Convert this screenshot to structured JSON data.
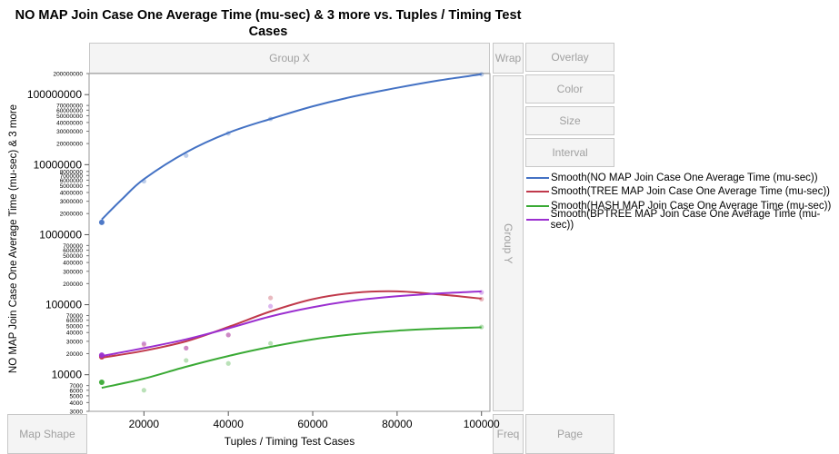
{
  "title_line1": "NO MAP Join Case One Average Time (mu-sec) & 3 more vs. Tuples / Timing Test",
  "title_line2": "Cases",
  "zones": {
    "group_x": "Group X",
    "wrap": "Wrap",
    "overlay": "Overlay",
    "color": "Color",
    "size": "Size",
    "interval": "Interval",
    "group_y": "Group Y",
    "map_shape": "Map Shape",
    "freq": "Freq",
    "page": "Page"
  },
  "chart_data": {
    "type": "scatter",
    "xlabel": "Tuples / Timing Test Cases",
    "ylabel": "NO MAP Join Case One Average Time (mu-sec) & 3 more",
    "y_scale": "log",
    "xlim": [
      7000,
      102000
    ],
    "ylim": [
      3000,
      200000000
    ],
    "x_ticks": [
      "20000",
      "40000",
      "60000",
      "80000",
      "100000"
    ],
    "y_ticks_major": [
      "100000000",
      "10000000",
      "1000000",
      "100000",
      "10000"
    ],
    "y_ticks_minor": [
      "200000000",
      "70000000",
      "60000000",
      "50000000",
      "40000000",
      "30000000",
      "20000000",
      "8000000",
      "7000000",
      "6000000",
      "5000000",
      "4000000",
      "3000000",
      "2000000",
      "700000",
      "600000",
      "500000",
      "400000",
      "300000",
      "200000",
      "70000",
      "60000",
      "50000",
      "40000",
      "30000",
      "20000",
      "7000",
      "6000",
      "5000",
      "4000",
      "3000"
    ],
    "series": [
      {
        "name": "Smooth(NO MAP Join Case One Average Time (mu-sec))",
        "color": "#4472c4",
        "points": [
          [
            10000,
            1500000
          ],
          [
            20000,
            5800000
          ],
          [
            30000,
            13500000
          ],
          [
            40000,
            28000000
          ],
          [
            50000,
            45000000
          ],
          [
            100000,
            195000000
          ]
        ],
        "smooth": [
          [
            10000,
            1650000
          ],
          [
            15000,
            3300000
          ],
          [
            20000,
            6200000
          ],
          [
            30000,
            15000000
          ],
          [
            40000,
            28500000
          ],
          [
            50000,
            45000000
          ],
          [
            60000,
            68000000
          ],
          [
            70000,
            95000000
          ],
          [
            80000,
            125000000
          ],
          [
            90000,
            160000000
          ],
          [
            100000,
            195000000
          ]
        ]
      },
      {
        "name": "Smooth(TREE MAP Join Case One Average Time (mu-sec))",
        "color": "#c0394b",
        "points": [
          [
            10000,
            18000
          ],
          [
            20000,
            27000
          ],
          [
            30000,
            24000
          ],
          [
            40000,
            37000
          ],
          [
            50000,
            125000
          ],
          [
            100000,
            120000
          ]
        ],
        "smooth": [
          [
            10000,
            17500
          ],
          [
            20000,
            22000
          ],
          [
            30000,
            30000
          ],
          [
            40000,
            48000
          ],
          [
            50000,
            80000
          ],
          [
            60000,
            120000
          ],
          [
            70000,
            148000
          ],
          [
            80000,
            155000
          ],
          [
            90000,
            140000
          ],
          [
            100000,
            122000
          ]
        ]
      },
      {
        "name": "Smooth(HASH MAP Join Case One Average Time (mu-sec))",
        "color": "#3aaa35",
        "points": [
          [
            10000,
            7800
          ],
          [
            20000,
            6000
          ],
          [
            30000,
            16000
          ],
          [
            40000,
            14500
          ],
          [
            50000,
            28000
          ],
          [
            100000,
            48000
          ]
        ],
        "smooth": [
          [
            10000,
            6500
          ],
          [
            20000,
            8800
          ],
          [
            30000,
            13000
          ],
          [
            40000,
            18500
          ],
          [
            50000,
            25000
          ],
          [
            60000,
            32000
          ],
          [
            70000,
            38000
          ],
          [
            80000,
            42500
          ],
          [
            90000,
            45500
          ],
          [
            100000,
            47500
          ]
        ]
      },
      {
        "name": "Smooth(BPTREE MAP Join Case One Average Time (mu-sec))",
        "color": "#9b2fd0",
        "points": [
          [
            10000,
            19000
          ],
          [
            20000,
            28000
          ],
          [
            30000,
            24000
          ],
          [
            40000,
            37000
          ],
          [
            50000,
            95000
          ],
          [
            100000,
            150000
          ]
        ],
        "smooth": [
          [
            10000,
            18500
          ],
          [
            20000,
            24000
          ],
          [
            30000,
            32000
          ],
          [
            40000,
            46000
          ],
          [
            50000,
            68000
          ],
          [
            60000,
            92000
          ],
          [
            70000,
            115000
          ],
          [
            80000,
            132000
          ],
          [
            90000,
            145000
          ],
          [
            100000,
            155000
          ]
        ]
      }
    ]
  }
}
